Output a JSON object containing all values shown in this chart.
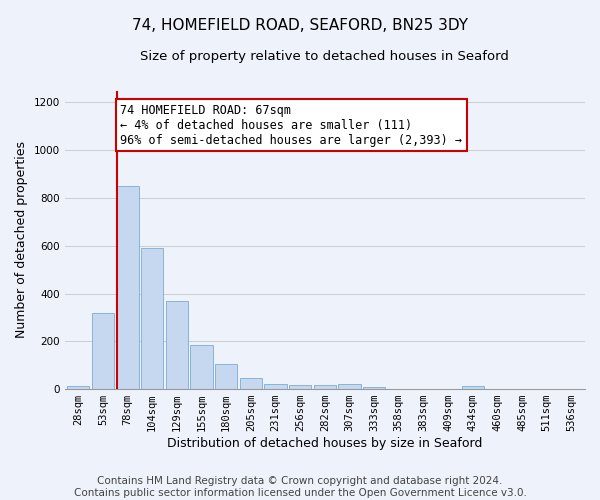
{
  "title": "74, HOMEFIELD ROAD, SEAFORD, BN25 3DY",
  "subtitle": "Size of property relative to detached houses in Seaford",
  "xlabel": "Distribution of detached houses by size in Seaford",
  "ylabel": "Number of detached properties",
  "categories": [
    "28sqm",
    "53sqm",
    "78sqm",
    "104sqm",
    "129sqm",
    "155sqm",
    "180sqm",
    "205sqm",
    "231sqm",
    "256sqm",
    "282sqm",
    "307sqm",
    "333sqm",
    "358sqm",
    "383sqm",
    "409sqm",
    "434sqm",
    "460sqm",
    "485sqm",
    "511sqm",
    "536sqm"
  ],
  "values": [
    15,
    320,
    850,
    590,
    370,
    185,
    105,
    48,
    22,
    18,
    18,
    20,
    10,
    0,
    0,
    0,
    12,
    0,
    0,
    0,
    0
  ],
  "bar_color": "#c5d8f0",
  "bar_edge_color": "#7aadd4",
  "vline_color": "#cc0000",
  "annotation_line1": "74 HOMEFIELD ROAD: 67sqm",
  "annotation_line2": "← 4% of detached houses are smaller (111)",
  "annotation_line3": "96% of semi-detached houses are larger (2,393) →",
  "annotation_box_facecolor": "#ffffff",
  "annotation_box_edgecolor": "#cc0000",
  "ylim": [
    0,
    1250
  ],
  "yticks": [
    0,
    200,
    400,
    600,
    800,
    1000,
    1200
  ],
  "footer_line1": "Contains HM Land Registry data © Crown copyright and database right 2024.",
  "footer_line2": "Contains public sector information licensed under the Open Government Licence v3.0.",
  "background_color": "#eef2fa",
  "grid_color": "#cccccc",
  "title_fontsize": 11,
  "subtitle_fontsize": 9.5,
  "axis_label_fontsize": 9,
  "tick_fontsize": 7.5,
  "annotation_fontsize": 8.5,
  "footer_fontsize": 7.5
}
